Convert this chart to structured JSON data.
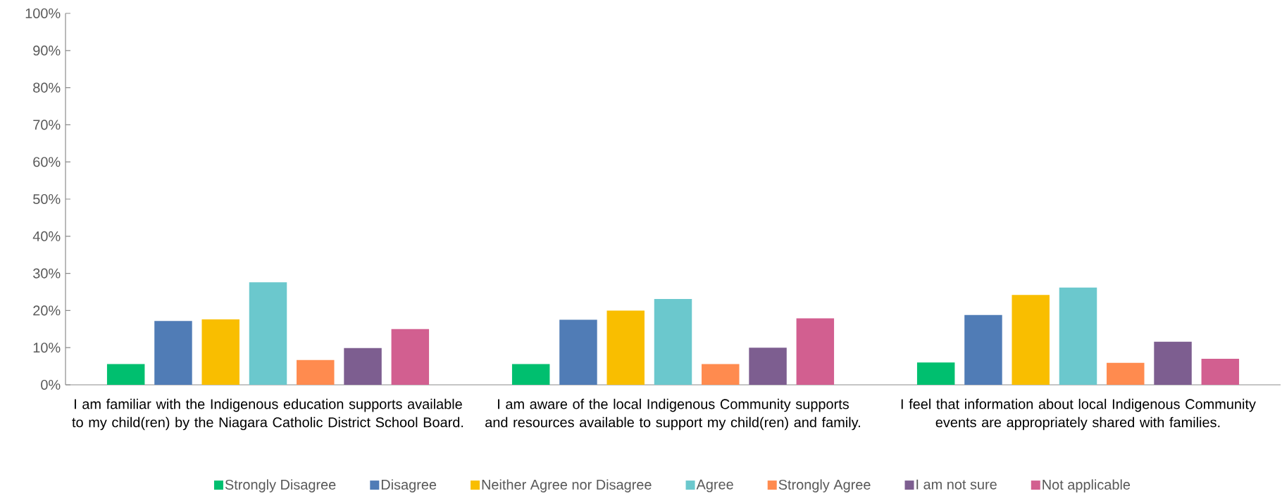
{
  "chart_data": {
    "type": "bar",
    "categories": [
      "I am familiar with the Indigenous education supports available to my child(ren) by the Niagara Catholic District School Board.",
      "I am aware of the local Indigenous Community supports and resources available to support my child(ren) and family.",
      "I feel that information about local Indigenous Community events are appropriately shared with families."
    ],
    "series": [
      {
        "name": "Strongly Disagree",
        "color": "#00bf6f",
        "values": [
          5.6,
          5.6,
          6.0
        ]
      },
      {
        "name": "Disagree",
        "color": "#507cb6",
        "values": [
          17.2,
          17.5,
          18.8
        ]
      },
      {
        "name": "Neither Agree nor Disagree",
        "color": "#f9be00",
        "values": [
          17.6,
          20.0,
          24.2
        ]
      },
      {
        "name": "Agree",
        "color": "#6bc8cd",
        "values": [
          27.6,
          23.1,
          26.2
        ]
      },
      {
        "name": "Strongly Agree",
        "color": "#ff8b4f",
        "values": [
          6.7,
          5.6,
          5.9
        ]
      },
      {
        "name": "I am not sure",
        "color": "#7d5e90",
        "values": [
          9.9,
          10.0,
          11.6
        ]
      },
      {
        "name": "Not applicable",
        "color": "#d25f90",
        "values": [
          15.0,
          17.9,
          7.0
        ]
      }
    ],
    "ylim": [
      0,
      100
    ],
    "yticks": [
      {
        "value": 0,
        "label": "0%"
      },
      {
        "value": 10,
        "label": "10%"
      },
      {
        "value": 20,
        "label": "20%"
      },
      {
        "value": 30,
        "label": "30%"
      },
      {
        "value": 40,
        "label": "40%"
      },
      {
        "value": 50,
        "label": "50%"
      },
      {
        "value": 60,
        "label": "60%"
      },
      {
        "value": 70,
        "label": "70%"
      },
      {
        "value": 80,
        "label": "80%"
      },
      {
        "value": 90,
        "label": "90%"
      },
      {
        "value": 100,
        "label": "100%"
      }
    ],
    "legend": "bottom"
  }
}
